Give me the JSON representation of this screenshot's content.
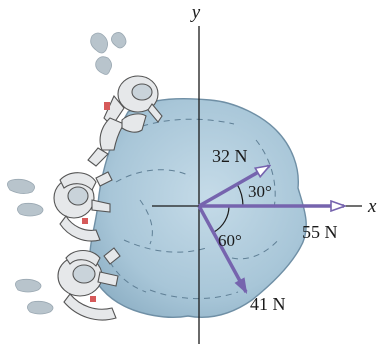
{
  "axes": {
    "x_label": "x",
    "y_label": "y"
  },
  "forces": [
    {
      "magnitude_label": "32 N",
      "angle_label": "30°"
    },
    {
      "magnitude_label": "55 N"
    },
    {
      "magnitude_label": "41 N",
      "angle_label": "60°"
    }
  ],
  "colors": {
    "asteroid_fill": "#a8c6d8",
    "asteroid_edge": "#6f8fa5",
    "force_vector": "#7664ae",
    "axis": "#1a1a1a",
    "suit": "#e6e8ea",
    "exhaust": "#b8c4cc"
  }
}
